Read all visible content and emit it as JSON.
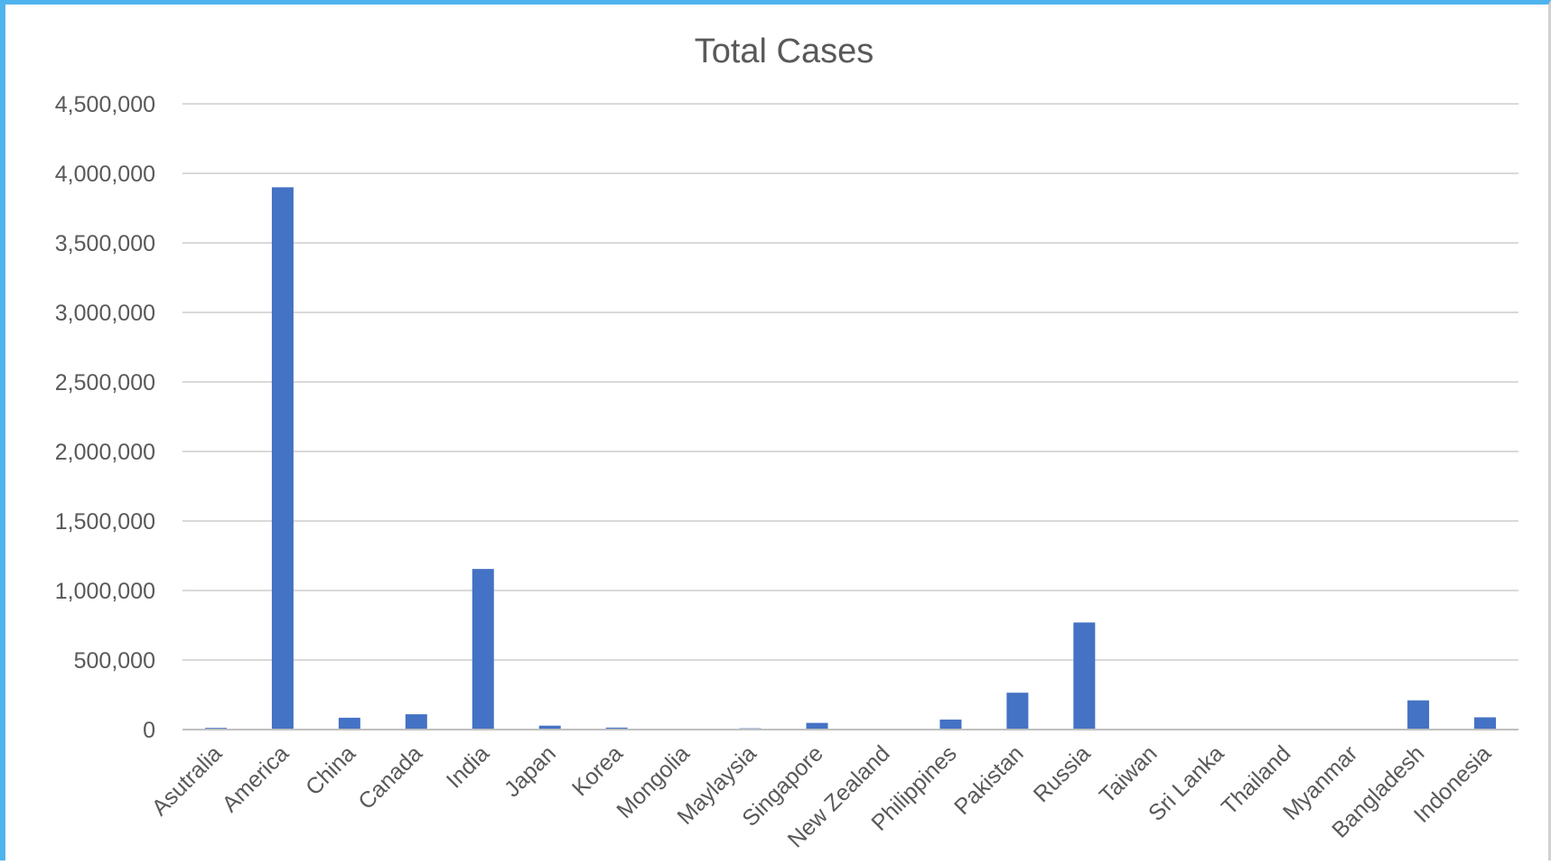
{
  "chart_data": {
    "type": "bar",
    "title": "Total Cases",
    "xlabel": "",
    "ylabel": "",
    "ylim": [
      0,
      4500000
    ],
    "yticks": [
      0,
      500000,
      1000000,
      1500000,
      2000000,
      2500000,
      3000000,
      3500000,
      4000000,
      4500000
    ],
    "ytick_labels": [
      "0",
      "500,000",
      "1,000,000",
      "1,500,000",
      "2,000,000",
      "2,500,000",
      "3,000,000",
      "3,500,000",
      "4,000,000",
      "4,500,000"
    ],
    "grid": true,
    "legend": "none",
    "bar_color": "#4472c4",
    "categories": [
      "Asutralia",
      "America",
      "China",
      "Canada",
      "India",
      "Japan",
      "Korea",
      "Mongolia",
      "Maylaysia",
      "Singapore",
      "New Zealand",
      "Philippines",
      "Pakistan",
      "Russia",
      "Taiwan",
      "Sri Lanka",
      "Thailand",
      "Myanmar",
      "Bangladesh",
      "Indonesia"
    ],
    "values": [
      12000,
      3900000,
      85000,
      110000,
      1155000,
      28000,
      14000,
      300,
      9000,
      48000,
      1500,
      72000,
      265000,
      770000,
      500,
      2800,
      3300,
      350,
      210000,
      88000
    ]
  }
}
